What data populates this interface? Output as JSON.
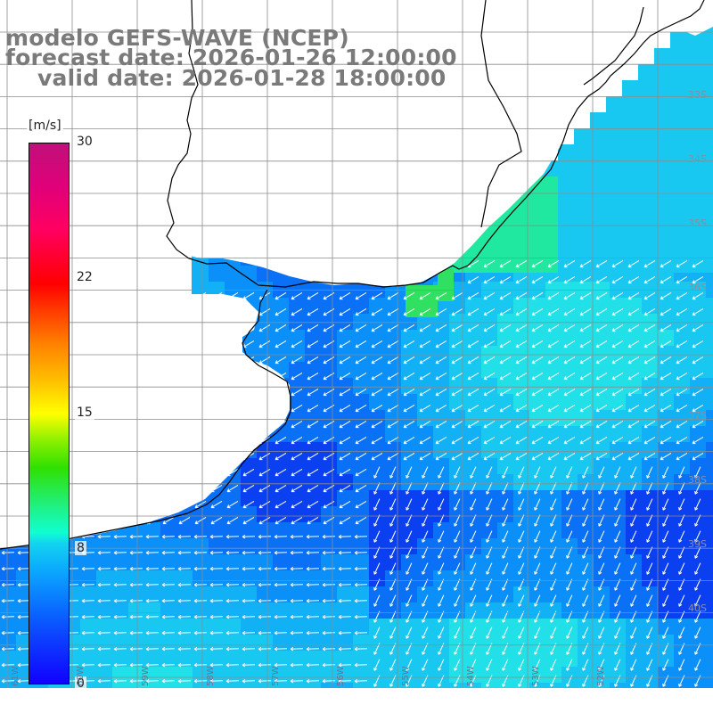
{
  "title": {
    "line1": "modelo GEFS-WAVE (NCEP)",
    "line2": "forecast date: 2026-01-26 12:00:00",
    "line3": "valid date: 2026-01-28 18:00:00"
  },
  "colorbar": {
    "unit": "[m/s]",
    "ticks": [
      "30",
      "22",
      "15",
      "8",
      "0"
    ],
    "tick_values": [
      30,
      22,
      15,
      8,
      0
    ],
    "colors": [
      "#1100ff",
      "#0aa0ff",
      "#10ffd0",
      "#30e000",
      "#ffff00",
      "#ff8000",
      "#ff0000",
      "#c0107a"
    ]
  },
  "map": {
    "land_color": "#ffffff",
    "coastline_color": "#000000",
    "grid_color": "#8c8c8c",
    "lat_labels": [
      "33S",
      "34S",
      "35S",
      "36S",
      "37S",
      "38S",
      "39S",
      "40S"
    ],
    "lon_labels": [
      "61W",
      "60W",
      "59W",
      "58W",
      "57W",
      "56W",
      "55W",
      "54W",
      "53W",
      "52W"
    ],
    "arrow_color": "#ffffff"
  }
}
